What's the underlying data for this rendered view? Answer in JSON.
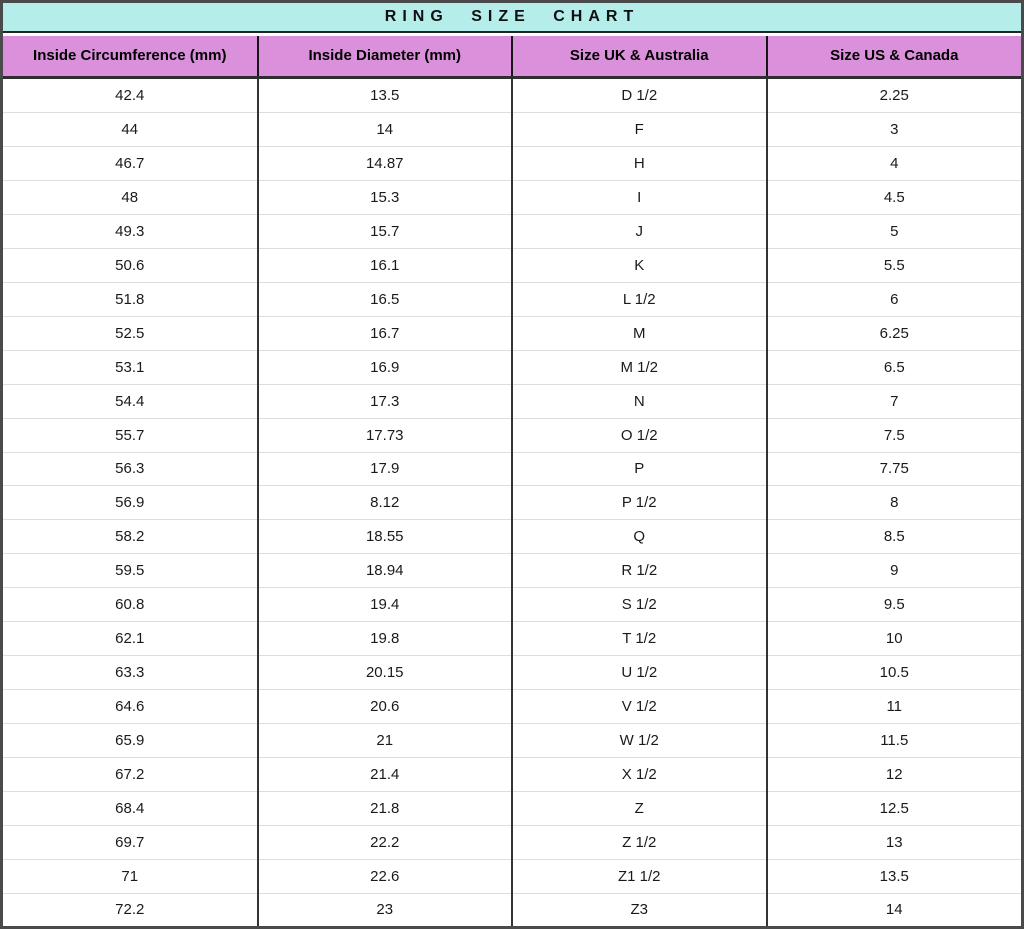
{
  "colors": {
    "title_bg": "#B4EDEA",
    "header_bg": "#DB90DB",
    "border_dark": "#4A4A4A",
    "line_dark": "#2E2E2E",
    "row_line": "#DEDEDE",
    "text": "#1A1A1A"
  },
  "chart_data": {
    "type": "table",
    "title": "RING SIZE CHART",
    "columns": [
      "Inside Circumference (mm)",
      "Inside Diameter (mm)",
      "Size UK & Australia",
      "Size US & Canada"
    ],
    "rows": [
      [
        "42.4",
        "13.5",
        "D 1/2",
        "2.25"
      ],
      [
        "44",
        "14",
        "F",
        "3"
      ],
      [
        "46.7",
        "14.87",
        "H",
        "4"
      ],
      [
        "48",
        "15.3",
        "I",
        "4.5"
      ],
      [
        "49.3",
        "15.7",
        "J",
        "5"
      ],
      [
        "50.6",
        "16.1",
        "K",
        "5.5"
      ],
      [
        "51.8",
        "16.5",
        "L 1/2",
        "6"
      ],
      [
        "52.5",
        "16.7",
        "M",
        "6.25"
      ],
      [
        "53.1",
        "16.9",
        "M 1/2",
        "6.5"
      ],
      [
        "54.4",
        "17.3",
        "N",
        "7"
      ],
      [
        "55.7",
        "17.73",
        "O 1/2",
        "7.5"
      ],
      [
        "56.3",
        "17.9",
        "P",
        "7.75"
      ],
      [
        "56.9",
        "8.12",
        "P 1/2",
        "8"
      ],
      [
        "58.2",
        "18.55",
        "Q",
        "8.5"
      ],
      [
        "59.5",
        "18.94",
        "R 1/2",
        "9"
      ],
      [
        "60.8",
        "19.4",
        "S 1/2",
        "9.5"
      ],
      [
        "62.1",
        "19.8",
        "T 1/2",
        "10"
      ],
      [
        "63.3",
        "20.15",
        "U 1/2",
        "10.5"
      ],
      [
        "64.6",
        "20.6",
        "V 1/2",
        "11"
      ],
      [
        "65.9",
        "21",
        "W 1/2",
        "11.5"
      ],
      [
        "67.2",
        "21.4",
        "X 1/2",
        "12"
      ],
      [
        "68.4",
        "21.8",
        "Z",
        "12.5"
      ],
      [
        "69.7",
        "22.2",
        "Z 1/2",
        "13"
      ],
      [
        "71",
        "22.6",
        "Z1 1/2",
        "13.5"
      ],
      [
        "72.2",
        "23",
        "Z3",
        "14"
      ]
    ]
  }
}
